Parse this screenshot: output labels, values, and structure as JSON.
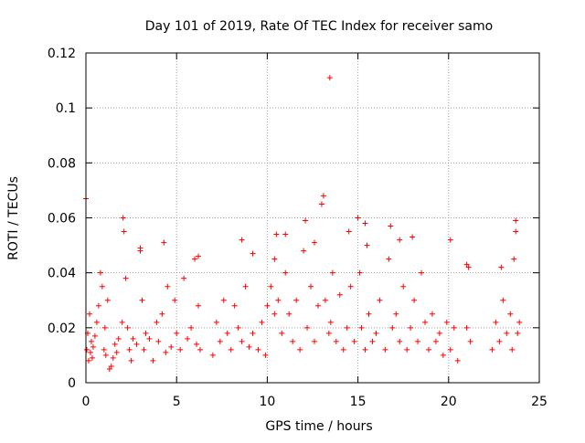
{
  "chart_data": {
    "type": "scatter",
    "title": "Day 101 of 2019, Rate Of TEC Index for receiver samo",
    "xlabel": "GPS time / hours",
    "ylabel": "ROTI / TECUs",
    "xlim": [
      0,
      25
    ],
    "ylim": [
      0,
      0.12
    ],
    "x_ticks": [
      0,
      5,
      10,
      15,
      20,
      25
    ],
    "x_tick_labels": [
      "0",
      "5",
      "10",
      "15",
      "20",
      "25"
    ],
    "y_ticks": [
      0,
      0.02,
      0.04,
      0.06,
      0.08,
      0.1,
      0.12
    ],
    "y_tick_labels": [
      "0",
      "0.02",
      "0.04",
      "0.06",
      "0.08",
      "0.1",
      "0.12"
    ],
    "grid": true,
    "marker": "+",
    "color": "#ff0000",
    "series": [
      {
        "name": "ROTI",
        "x": [
          0.05,
          0.1,
          0.15,
          0.2,
          0.25,
          0.3,
          0.35,
          0.4,
          0.5,
          0.6,
          0.7,
          0.8,
          0.9,
          1.0,
          1.05,
          1.1,
          1.2,
          1.3,
          1.4,
          1.5,
          1.6,
          1.7,
          1.8,
          2.0,
          2.1,
          2.2,
          2.3,
          2.4,
          2.5,
          2.6,
          2.8,
          3.0,
          3.1,
          3.2,
          3.3,
          3.5,
          3.7,
          3.9,
          4.0,
          4.2,
          4.4,
          4.5,
          4.7,
          4.9,
          5.0,
          5.2,
          5.4,
          5.6,
          5.8,
          6.0,
          6.1,
          6.2,
          6.3,
          7.0,
          7.2,
          7.4,
          7.6,
          7.8,
          8.0,
          8.2,
          8.4,
          8.6,
          8.8,
          9.0,
          9.2,
          9.5,
          9.7,
          9.9,
          10.0,
          10.2,
          10.4,
          10.5,
          10.6,
          10.8,
          11.0,
          11.2,
          11.4,
          11.6,
          11.8,
          12.0,
          12.2,
          12.4,
          12.6,
          12.8,
          13.0,
          13.2,
          13.4,
          13.5,
          13.6,
          13.8,
          14.0,
          14.2,
          14.4,
          14.6,
          14.8,
          15.0,
          15.1,
          15.2,
          15.4,
          15.5,
          15.6,
          15.8,
          16.0,
          16.2,
          16.5,
          16.7,
          16.9,
          17.1,
          17.3,
          17.5,
          17.7,
          17.9,
          18.1,
          18.3,
          18.5,
          18.7,
          18.9,
          19.1,
          19.3,
          19.5,
          19.7,
          19.9,
          20.1,
          20.3,
          20.5,
          21.0,
          21.1,
          21.2,
          22.4,
          22.6,
          22.8,
          23.0,
          23.2,
          23.4,
          23.5,
          23.6,
          23.7,
          23.8,
          23.9,
          0.0,
          13.45,
          12.1,
          13.1,
          15.4,
          16.8,
          20.1,
          23.7,
          2.05,
          4.3,
          8.6,
          11.0,
          14.5,
          18.0,
          6.2,
          3.0,
          9.2,
          10.4,
          12.6,
          17.3,
          21.0,
          22.9
        ],
        "y": [
          0.012,
          0.018,
          0.008,
          0.025,
          0.011,
          0.015,
          0.009,
          0.013,
          0.017,
          0.022,
          0.028,
          0.04,
          0.035,
          0.012,
          0.02,
          0.01,
          0.03,
          0.005,
          0.006,
          0.009,
          0.014,
          0.011,
          0.016,
          0.022,
          0.055,
          0.038,
          0.02,
          0.012,
          0.008,
          0.016,
          0.014,
          0.048,
          0.03,
          0.012,
          0.018,
          0.016,
          0.008,
          0.022,
          0.015,
          0.025,
          0.011,
          0.035,
          0.013,
          0.03,
          0.018,
          0.012,
          0.038,
          0.016,
          0.02,
          0.045,
          0.014,
          0.028,
          0.012,
          0.01,
          0.022,
          0.015,
          0.03,
          0.018,
          0.012,
          0.028,
          0.02,
          0.015,
          0.035,
          0.013,
          0.018,
          0.012,
          0.022,
          0.01,
          0.028,
          0.035,
          0.025,
          0.054,
          0.03,
          0.018,
          0.04,
          0.025,
          0.015,
          0.03,
          0.012,
          0.048,
          0.02,
          0.035,
          0.015,
          0.028,
          0.065,
          0.03,
          0.018,
          0.022,
          0.04,
          0.015,
          0.032,
          0.012,
          0.02,
          0.035,
          0.015,
          0.06,
          0.04,
          0.02,
          0.012,
          0.05,
          0.025,
          0.015,
          0.018,
          0.03,
          0.012,
          0.045,
          0.02,
          0.025,
          0.015,
          0.035,
          0.012,
          0.02,
          0.03,
          0.015,
          0.04,
          0.022,
          0.012,
          0.025,
          0.015,
          0.018,
          0.01,
          0.022,
          0.012,
          0.02,
          0.008,
          0.02,
          0.042,
          0.015,
          0.012,
          0.022,
          0.015,
          0.03,
          0.018,
          0.025,
          0.012,
          0.045,
          0.055,
          0.018,
          0.022,
          0.067,
          0.111,
          0.059,
          0.068,
          0.058,
          0.057,
          0.052,
          0.059,
          0.06,
          0.051,
          0.052,
          0.054,
          0.055,
          0.053,
          0.046,
          0.049,
          0.047,
          0.045,
          0.051,
          0.052,
          0.043,
          0.042
        ]
      }
    ]
  }
}
